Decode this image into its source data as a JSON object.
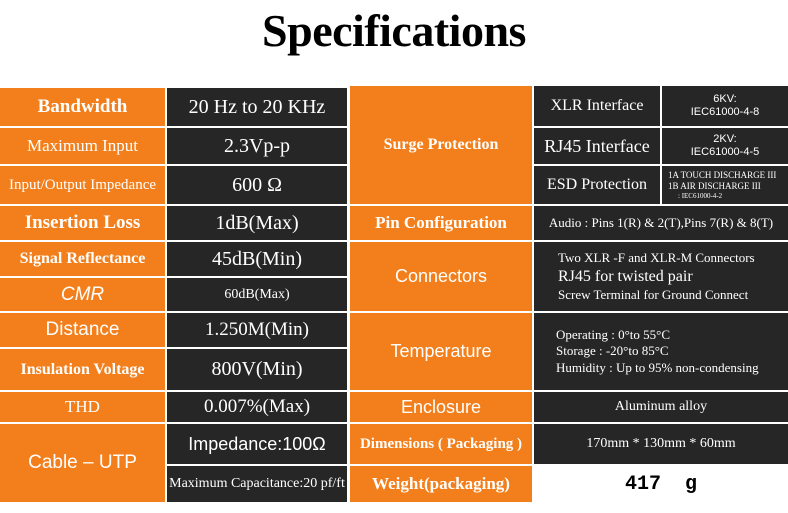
{
  "title": "Specifications",
  "left": {
    "bandwidth": {
      "label": "Bandwidth",
      "value": "20 Hz to 20 KHz"
    },
    "max_input": {
      "label": "Maximum Input",
      "value": "2.3Vp-p"
    },
    "impedance": {
      "label": "Input/Output Impedance",
      "value": "600 Ω"
    },
    "insertion_loss": {
      "label": "Insertion Loss",
      "value": "1dB(Max)"
    },
    "signal_reflectance": {
      "label": "Signal Reflectance",
      "value": "45dB(Min)"
    },
    "cmr": {
      "label": "CMR",
      "value": "60dB(Max)"
    },
    "distance": {
      "label": "Distance",
      "value": "1.250M(Min)"
    },
    "insulation_voltage": {
      "label": "Insulation Voltage",
      "value": "800V(Min)"
    },
    "thd": {
      "label": "THD",
      "value": "0.007%(Max)"
    },
    "cable": {
      "label": "Cable – UTP",
      "impedance": "Impedance:100Ω",
      "capacitance": "Maximum Capacitance:20 pf/ft"
    }
  },
  "right": {
    "surge_protection": {
      "label": "Surge Protection",
      "xlr": {
        "label": "XLR Interface",
        "kv": "6KV:",
        "standard": "IEC61000-4-8"
      },
      "rj45": {
        "label": "RJ45  Interface",
        "kv": "2KV:",
        "standard": "IEC61000-4-5"
      },
      "esd": {
        "label": "ESD Protection",
        "lines": [
          "1A TOUCH DISCHARGE III",
          "1B AIR DISCHARGE III",
          ": IEC61000-4-2"
        ]
      }
    },
    "pin_configuration": {
      "label": "Pin Configuration",
      "value": "Audio : Pins 1(R) & 2(T),Pins 7(R) & 8(T)"
    },
    "connectors": {
      "label": "Connectors",
      "lines": [
        "Two  XLR -F and XLR-M  Connectors",
        "RJ45  for  twisted  pair",
        "Screw  Terminal  for Ground Connect"
      ]
    },
    "temperature": {
      "label": "Temperature",
      "lines": [
        "Operating : 0°to 55°C",
        "Storage :   -20°to 85°C",
        "Humidity : Up  to  95% non-condensing"
      ]
    },
    "enclosure": {
      "label": "Enclosure",
      "value": "Aluminum alloy"
    },
    "dimensions": {
      "label": "Dimensions ( Packaging )",
      "value": "170mm * 130mm * 60mm"
    },
    "weight": {
      "label": "Weight(packaging)",
      "value": "417  g"
    }
  },
  "colors": {
    "orange": "#f27f1b",
    "dark": "#262626",
    "white": "#ffffff"
  }
}
